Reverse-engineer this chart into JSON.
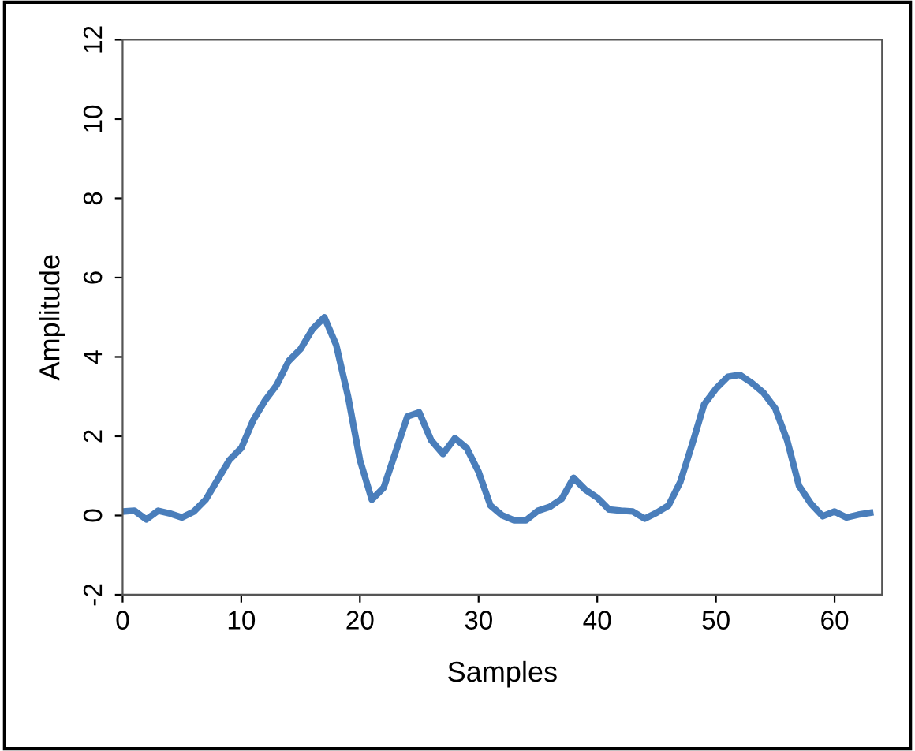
{
  "chart_data": {
    "type": "line",
    "xlabel": "Samples",
    "ylabel": "Amplitude",
    "x": [
      0,
      1,
      2,
      3,
      4,
      5,
      6,
      7,
      8,
      9,
      10,
      11,
      12,
      13,
      14,
      15,
      16,
      17,
      18,
      19,
      20,
      21,
      22,
      23,
      24,
      25,
      26,
      27,
      28,
      29,
      30,
      31,
      32,
      33,
      34,
      35,
      36,
      37,
      38,
      39,
      40,
      41,
      42,
      43,
      44,
      45,
      46,
      47,
      48,
      49,
      50,
      51,
      52,
      53,
      54,
      55,
      56,
      57,
      58,
      59,
      60,
      61,
      62,
      63
    ],
    "series": [
      {
        "color": "#4a7ebb",
        "values": [
          0.1,
          0.12,
          -0.1,
          0.12,
          0.05,
          -0.05,
          0.1,
          0.4,
          0.9,
          1.4,
          1.7,
          2.4,
          2.9,
          3.3,
          3.9,
          4.2,
          4.7,
          5.0,
          4.3,
          3.0,
          1.4,
          0.4,
          0.7,
          1.6,
          2.5,
          2.6,
          1.9,
          1.55,
          1.95,
          1.7,
          1.1,
          0.25,
          0.0,
          -0.12,
          -0.12,
          0.12,
          0.22,
          0.42,
          0.95,
          0.65,
          0.45,
          0.15,
          0.12,
          0.1,
          -0.08,
          0.07,
          0.25,
          0.85,
          1.8,
          2.8,
          3.2,
          3.5,
          3.55,
          3.35,
          3.1,
          2.7,
          1.9,
          0.75,
          0.3,
          -0.02,
          0.1,
          -0.05,
          0.02,
          0.07
        ]
      }
    ],
    "xlim": [
      0,
      64
    ],
    "xticks": [
      0,
      10,
      20,
      30,
      40,
      50,
      60
    ],
    "ylim": [
      -2,
      12
    ],
    "yticks": [
      -2,
      0,
      2,
      4,
      6,
      8,
      10,
      12
    ],
    "grid": false,
    "marker": "none",
    "line_style": "solid"
  }
}
